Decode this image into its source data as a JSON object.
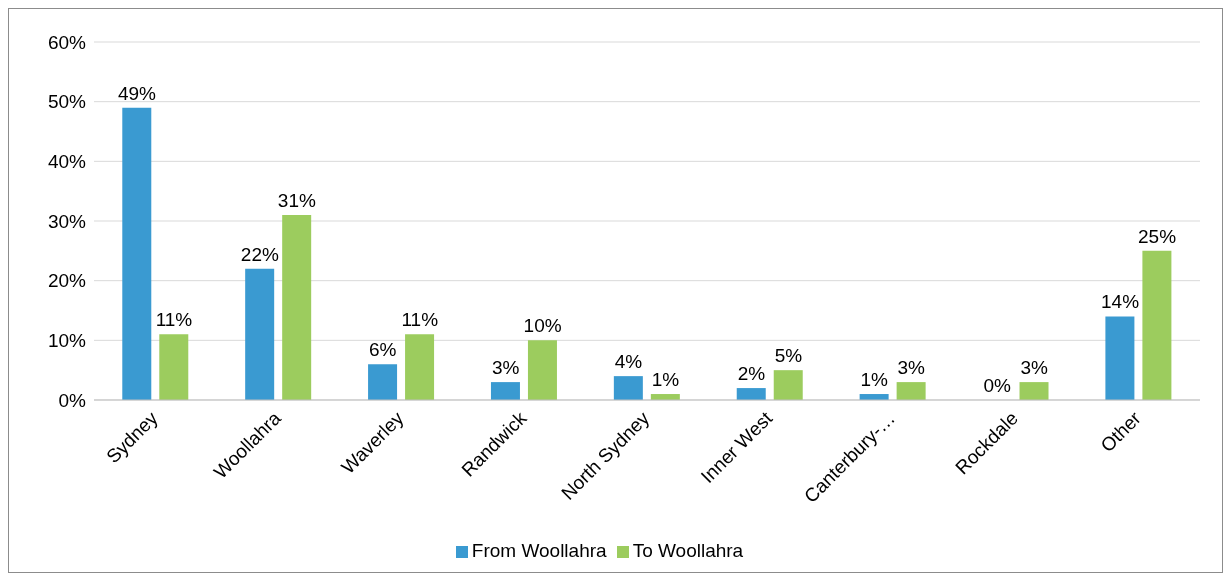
{
  "chart_data": {
    "type": "bar",
    "categories": [
      "Sydney",
      "Woollahra",
      "Waverley",
      "Randwick",
      "North Sydney",
      "Inner West",
      "Canterbury-…",
      "Rockdale",
      "Other"
    ],
    "series": [
      {
        "name": "From Woollahra",
        "color": "#3a9ad1",
        "values": [
          49,
          22,
          6,
          3,
          4,
          2,
          1,
          0,
          14
        ],
        "value_labels": [
          "49%",
          "22%",
          "6%",
          "3%",
          "4%",
          "2%",
          "1%",
          "0%",
          "14%"
        ]
      },
      {
        "name": "To Woollahra",
        "color": "#9ccc5e",
        "values": [
          11,
          31,
          11,
          10,
          1,
          5,
          3,
          3,
          25
        ],
        "value_labels": [
          "11%",
          "31%",
          "11%",
          "10%",
          "1%",
          "5%",
          "3%",
          "3%",
          "25%"
        ]
      }
    ],
    "ylim": [
      0,
      60
    ],
    "yticks": [
      {
        "value": 0,
        "label": "0%"
      },
      {
        "value": 10,
        "label": "10%"
      },
      {
        "value": 20,
        "label": "20%"
      },
      {
        "value": 30,
        "label": "30%"
      },
      {
        "value": 40,
        "label": "40%"
      },
      {
        "value": 50,
        "label": "50%"
      },
      {
        "value": 60,
        "label": "60%"
      }
    ],
    "grid": "y",
    "legend": "bottom"
  }
}
